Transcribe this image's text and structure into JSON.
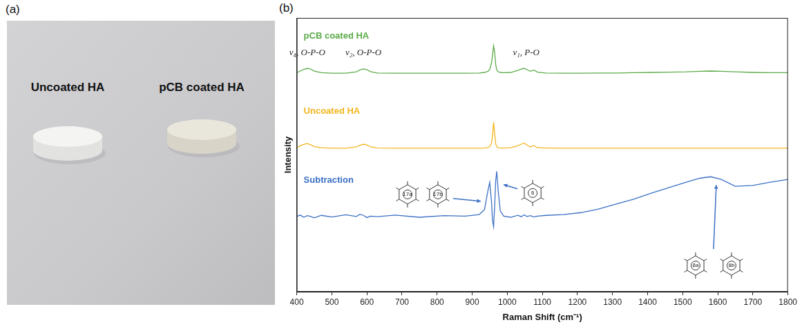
{
  "photo_panel": {
    "panel_label": "(a)",
    "labels": [
      "Uncoated HA",
      "pCB coated HA"
    ]
  },
  "chart_data": {
    "type": "line",
    "panel_label": "(b)",
    "x_label": "Raman Shift (cm⁻¹)",
    "y_label": "Intensity",
    "x": [
      400,
      410,
      420,
      430,
      440,
      450,
      470,
      500,
      540,
      570,
      580,
      590,
      600,
      610,
      630,
      680,
      750,
      820,
      880,
      920,
      935,
      945,
      950,
      955,
      958,
      961,
      964,
      967,
      970,
      974,
      980,
      990,
      1010,
      1030,
      1040,
      1048,
      1056,
      1066,
      1076,
      1086,
      1110,
      1160,
      1210,
      1260,
      1310,
      1360,
      1410,
      1460,
      1510,
      1550,
      1580,
      1610,
      1650,
      1700,
      1750,
      1800
    ],
    "series": [
      {
        "name": "pCB coated HA",
        "color": "#5aab47",
        "values": [
          80.0,
          80.6,
          81.2,
          81.6,
          81.3,
          80.6,
          80.0,
          79.8,
          79.8,
          80.3,
          81.0,
          81.4,
          81.1,
          80.4,
          79.9,
          79.8,
          79.8,
          79.8,
          79.8,
          79.9,
          80.1,
          80.5,
          81.2,
          83.5,
          86.5,
          89.8,
          87.5,
          83.0,
          81.0,
          80.4,
          80.1,
          80.0,
          80.1,
          80.8,
          81.3,
          81.6,
          81.1,
          80.5,
          81.0,
          80.2,
          79.9,
          79.8,
          79.8,
          79.9,
          79.9,
          80.0,
          80.1,
          80.2,
          80.3,
          80.5,
          80.6,
          80.5,
          80.3,
          80.1,
          80.0,
          80.0
        ]
      },
      {
        "name": "Uncoated HA",
        "color": "#f2b51c",
        "values": [
          52.6,
          53.3,
          53.8,
          54.1,
          53.7,
          53.0,
          52.6,
          52.4,
          52.4,
          52.9,
          53.5,
          53.9,
          53.6,
          52.9,
          52.5,
          52.4,
          52.4,
          52.4,
          52.4,
          52.4,
          52.5,
          52.7,
          53.0,
          54.2,
          57.0,
          61.9,
          58.0,
          54.0,
          53.0,
          52.6,
          52.5,
          52.5,
          52.6,
          53.3,
          53.9,
          54.3,
          53.6,
          52.9,
          53.4,
          52.6,
          52.5,
          52.4,
          52.4,
          52.4,
          52.4,
          52.4,
          52.4,
          52.4,
          52.4,
          52.4,
          52.4,
          52.4,
          52.4,
          52.4,
          52.4,
          52.4
        ]
      },
      {
        "name": "Subtraction",
        "color": "#3b6fc4",
        "values": [
          27.5,
          28.0,
          27.2,
          27.8,
          27.5,
          27.0,
          27.9,
          27.3,
          28.1,
          27.5,
          28.3,
          27.9,
          27.1,
          27.6,
          27.4,
          28.0,
          27.2,
          27.8,
          27.6,
          28.2,
          30.0,
          37.0,
          40.0,
          33.0,
          26.0,
          23.8,
          31.0,
          40.5,
          44.0,
          37.0,
          29.5,
          27.6,
          27.2,
          27.9,
          27.4,
          28.1,
          27.5,
          27.8,
          27.3,
          27.6,
          27.9,
          28.2,
          28.9,
          30.2,
          32.0,
          33.8,
          36.0,
          38.0,
          40.0,
          41.5,
          42.0,
          41.0,
          38.5,
          38.8,
          40.0,
          41.0
        ]
      }
    ],
    "xlim": [
      400,
      1800
    ],
    "xticks": [
      400,
      500,
      600,
      700,
      800,
      900,
      1000,
      1100,
      1200,
      1300,
      1400,
      1500,
      1600,
      1700,
      1800
    ],
    "ylim": [
      0,
      100
    ],
    "grid": false,
    "tick_labels": "x",
    "annotations": [
      {
        "text": "ν₄, O-P-O",
        "x": 430
      },
      {
        "text": "ν₂, O-P-O",
        "x": 590
      },
      {
        "text": "ν₁, P-O",
        "x": 961
      }
    ],
    "modes": [
      {
        "label": "17a",
        "x": 948
      },
      {
        "label": "17b",
        "x": 948
      },
      {
        "label": "6",
        "x": 970
      },
      {
        "label": "8a",
        "x": 1580
      },
      {
        "label": "8b",
        "x": 1580
      }
    ]
  }
}
